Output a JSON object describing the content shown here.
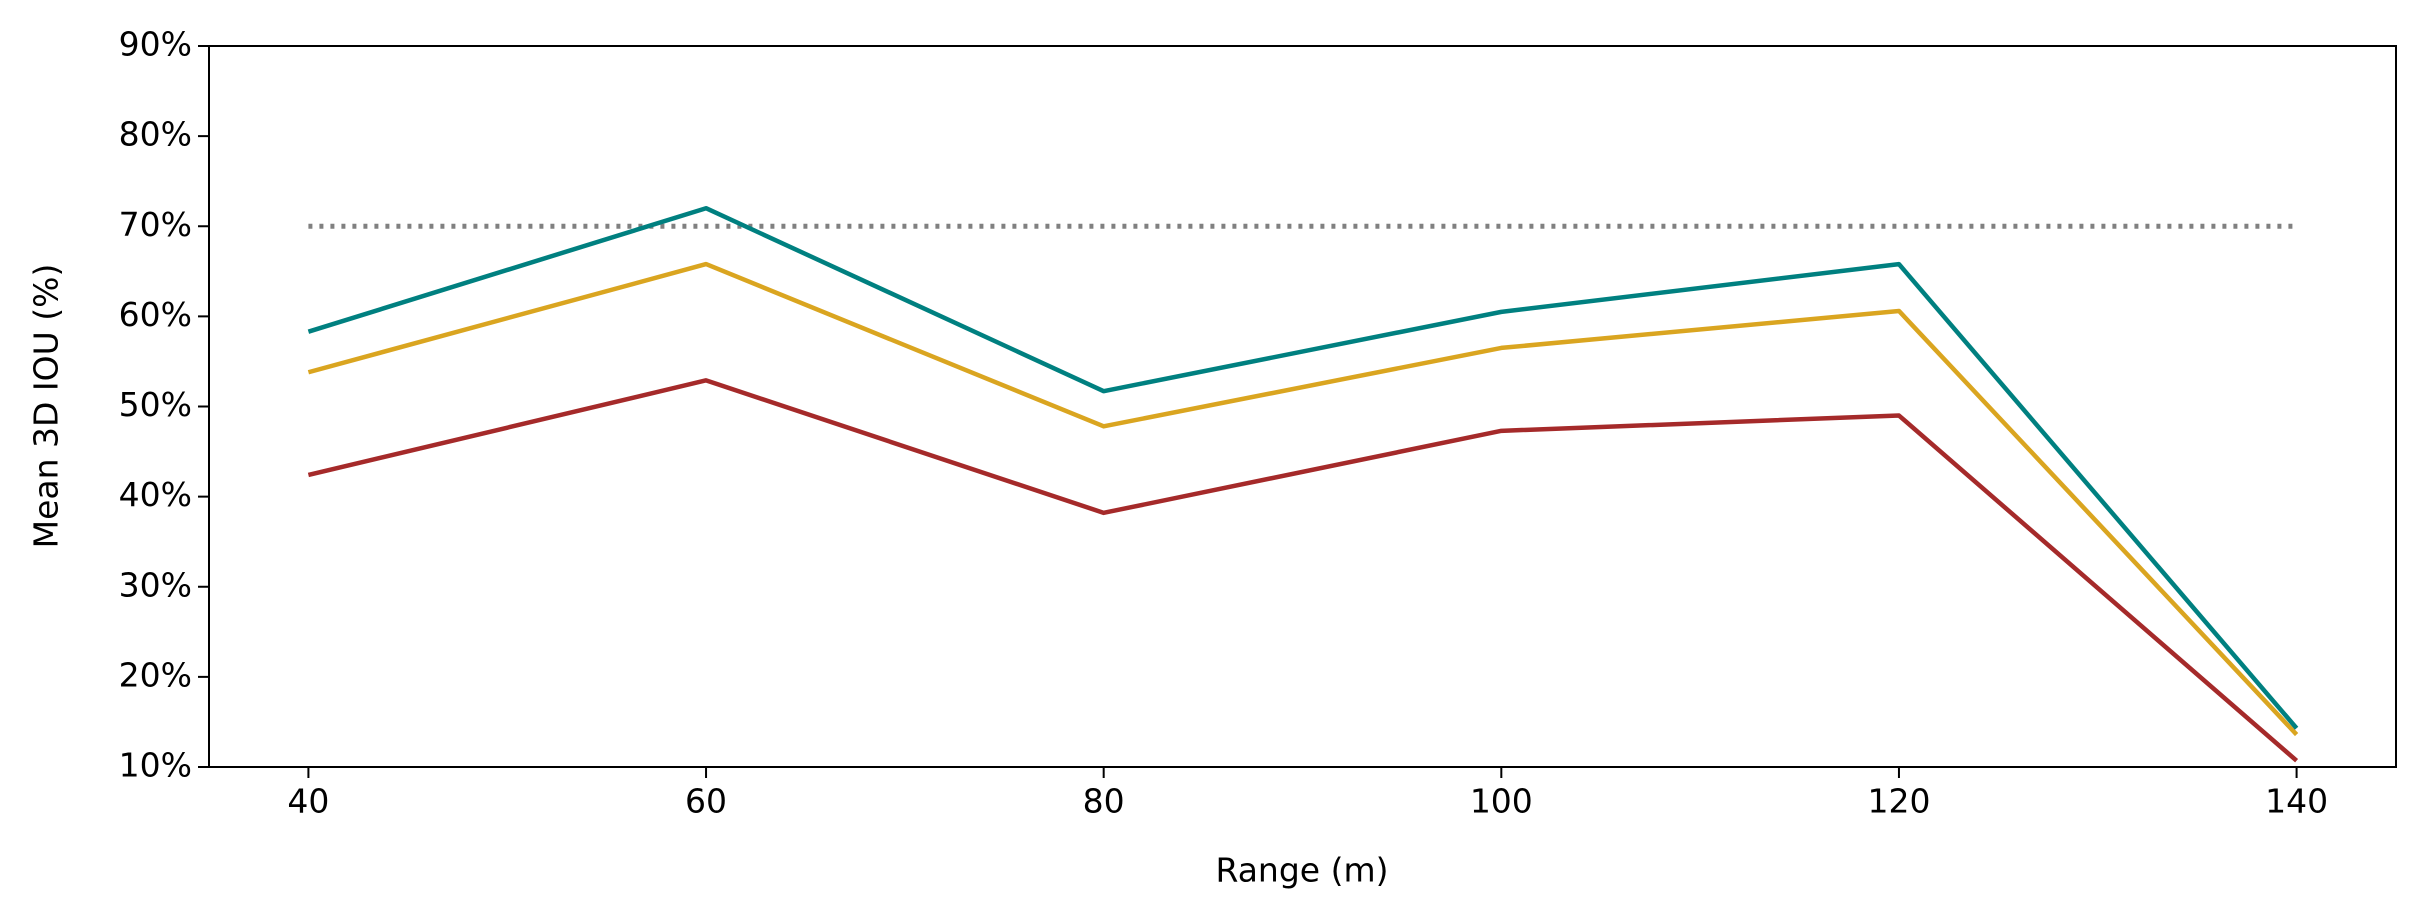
{
  "chart_data": {
    "type": "line",
    "x_label": "Range (m)",
    "y_label": "Mean 3D IOU (%)",
    "x": [
      40,
      60,
      80,
      100,
      120,
      140
    ],
    "series": [
      {
        "color": "#008080",
        "values": [
          58.3,
          72,
          51.7,
          60.5,
          65.8,
          14.3
        ]
      },
      {
        "color": "#daa520",
        "values": [
          53.8,
          65.8,
          47.8,
          56.5,
          60.6,
          13.6
        ]
      },
      {
        "color": "#a52a2a",
        "values": [
          42.4,
          52.9,
          38.2,
          47.3,
          49,
          10.7
        ]
      },
      {
        "color": "#808080",
        "dash": "dotted",
        "values": [
          70,
          70,
          70,
          70,
          70,
          70
        ]
      }
    ],
    "xlim": [
      35,
      145
    ],
    "xticks": [
      40,
      60,
      80,
      100,
      120,
      140
    ],
    "ylim": [
      10,
      90
    ],
    "yticks": [
      {
        "value": 10,
        "label": "10%"
      },
      {
        "value": 20,
        "label": "20%"
      },
      {
        "value": 30,
        "label": "30%"
      },
      {
        "value": 40,
        "label": "40%"
      },
      {
        "value": 50,
        "label": "50%"
      },
      {
        "value": 60,
        "label": "60%"
      },
      {
        "value": 70,
        "label": "70%"
      },
      {
        "value": 80,
        "label": "80%"
      },
      {
        "value": 90,
        "label": "90%"
      }
    ]
  }
}
